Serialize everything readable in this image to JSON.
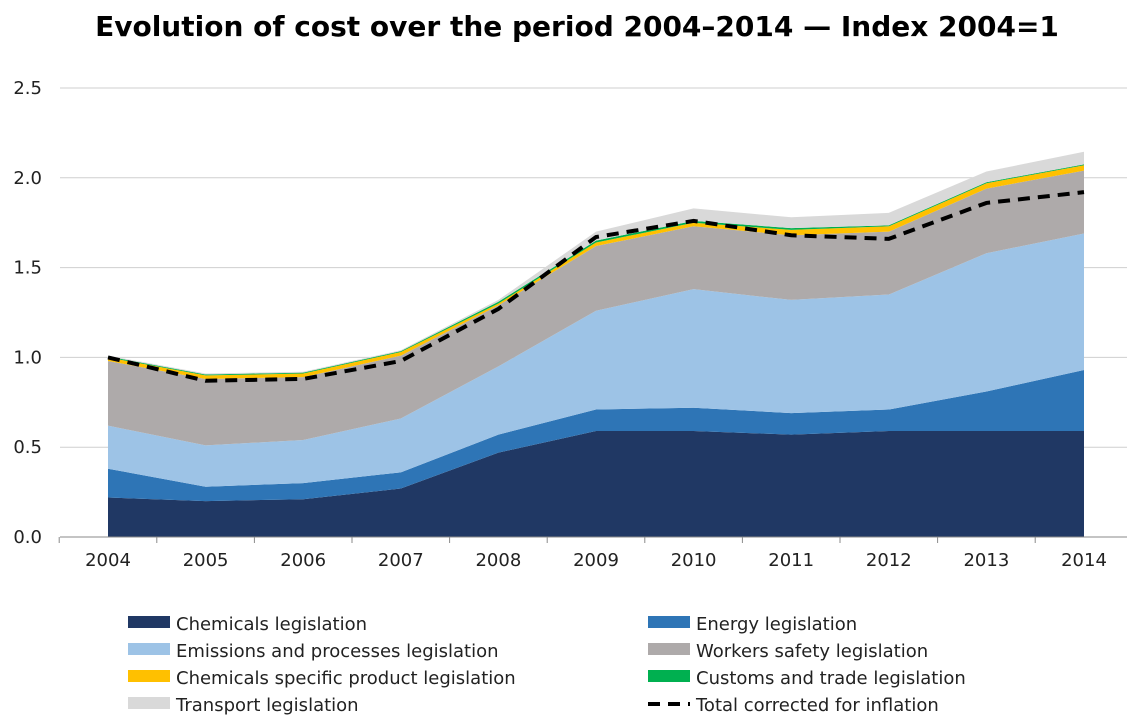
{
  "chart_data": {
    "type": "area",
    "title": "Evolution of cost over the period 2004–2014 — Index 2004=1",
    "xlabel": "",
    "ylabel": "",
    "categories": [
      "2004",
      "2005",
      "2006",
      "2007",
      "2008",
      "2009",
      "2010",
      "2011",
      "2012",
      "2013",
      "2014"
    ],
    "ylim": [
      0,
      2.5
    ],
    "yticks": [
      "0.0",
      "0.5",
      "1.0",
      "1.5",
      "2.0",
      "2.5"
    ],
    "grid": true,
    "legend_position": "bottom",
    "stacked": true,
    "series": [
      {
        "name": "Chemicals legislation",
        "color": "#203864",
        "values": [
          0.22,
          0.2,
          0.21,
          0.27,
          0.47,
          0.59,
          0.59,
          0.57,
          0.59,
          0.59,
          0.59
        ]
      },
      {
        "name": "Energy legislation",
        "color": "#2e75b6",
        "values": [
          0.16,
          0.08,
          0.09,
          0.09,
          0.1,
          0.12,
          0.13,
          0.12,
          0.12,
          0.22,
          0.34
        ]
      },
      {
        "name": "Emissions and processes legislation",
        "color": "#9dc3e6",
        "values": [
          0.24,
          0.23,
          0.24,
          0.3,
          0.38,
          0.55,
          0.66,
          0.63,
          0.64,
          0.77,
          0.76
        ]
      },
      {
        "name": "Workers safety legislation",
        "color": "#aeaaaa",
        "values": [
          0.36,
          0.37,
          0.35,
          0.35,
          0.34,
          0.36,
          0.35,
          0.36,
          0.35,
          0.36,
          0.35
        ]
      },
      {
        "name": "Chemicals specific product legislation",
        "color": "#ffc000",
        "values": [
          0.02,
          0.02,
          0.02,
          0.02,
          0.01,
          0.02,
          0.02,
          0.03,
          0.03,
          0.03,
          0.03
        ]
      },
      {
        "name": "Customs and trade legislation",
        "color": "#00b050",
        "values": [
          0.005,
          0.005,
          0.005,
          0.005,
          0.01,
          0.01,
          0.01,
          0.01,
          0.005,
          0.005,
          0.005
        ]
      },
      {
        "name": "Transport legislation",
        "color": "#d9d9d9",
        "values": [
          0.005,
          0.005,
          0.005,
          0.005,
          0.01,
          0.05,
          0.07,
          0.06,
          0.07,
          0.06,
          0.07
        ]
      }
    ],
    "line_series": {
      "name": "Total corrected for inflation",
      "color": "#000000",
      "style": "dashed",
      "values": [
        1.0,
        0.87,
        0.88,
        0.98,
        1.27,
        1.67,
        1.76,
        1.68,
        1.66,
        1.86,
        1.92
      ]
    }
  }
}
